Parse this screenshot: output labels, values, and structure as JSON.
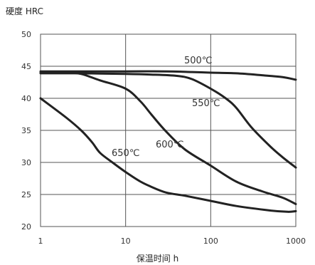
{
  "chart_data": {
    "type": "line",
    "title": "",
    "ylabel": "硬度 HRC",
    "xlabel": "保温时间 h",
    "x_scale": "log",
    "xlim": [
      1,
      1000
    ],
    "ylim": [
      20,
      50
    ],
    "x_ticks": [
      1,
      10,
      100,
      1000
    ],
    "x_tick_labels": [
      "1",
      "10",
      "100",
      "1000"
    ],
    "y_ticks": [
      20,
      25,
      30,
      35,
      40,
      45,
      50
    ],
    "y_tick_labels": [
      "20",
      "25",
      "30",
      "35",
      "40",
      "45",
      "50"
    ],
    "grid": true,
    "series": [
      {
        "name": "500℃",
        "x": [
          1,
          3,
          10,
          30,
          60,
          100,
          200,
          400,
          700,
          1000
        ],
        "y": [
          44.2,
          44.2,
          44.2,
          44.2,
          44.1,
          44.0,
          43.9,
          43.6,
          43.3,
          42.9
        ]
      },
      {
        "name": "550℃",
        "x": [
          1,
          3,
          10,
          20,
          40,
          60,
          100,
          150,
          200,
          300,
          500,
          700,
          1000
        ],
        "y": [
          43.9,
          43.9,
          43.8,
          43.7,
          43.5,
          43.0,
          41.5,
          40.0,
          38.5,
          35.5,
          32.5,
          30.8,
          29.2
        ]
      },
      {
        "name": "600℃",
        "x": [
          1,
          2,
          3,
          5,
          10,
          15,
          20,
          30,
          50,
          100,
          200,
          400,
          700,
          1000
        ],
        "y": [
          44.0,
          44.0,
          43.8,
          42.8,
          41.5,
          39.5,
          37.5,
          34.8,
          32.0,
          29.5,
          27.0,
          25.5,
          24.5,
          23.5
        ]
      },
      {
        "name": "650℃",
        "x": [
          1,
          2,
          3,
          4,
          5,
          7,
          10,
          15,
          20,
          30,
          50,
          100,
          200,
          500,
          800,
          1000
        ],
        "y": [
          40.0,
          37.0,
          35.0,
          33.2,
          31.5,
          30.0,
          28.5,
          27.0,
          26.2,
          25.3,
          24.8,
          24.0,
          23.2,
          22.5,
          22.3,
          22.4
        ]
      }
    ],
    "annotations": [
      {
        "text": "500℃",
        "series": "500℃"
      },
      {
        "text": "550℃",
        "series": "550℃"
      },
      {
        "text": "600℃",
        "series": "600℃"
      },
      {
        "text": "650℃",
        "series": "650℃"
      }
    ],
    "colors": {
      "line": "#222222",
      "grid": "#555555",
      "axis": "#555555"
    }
  }
}
